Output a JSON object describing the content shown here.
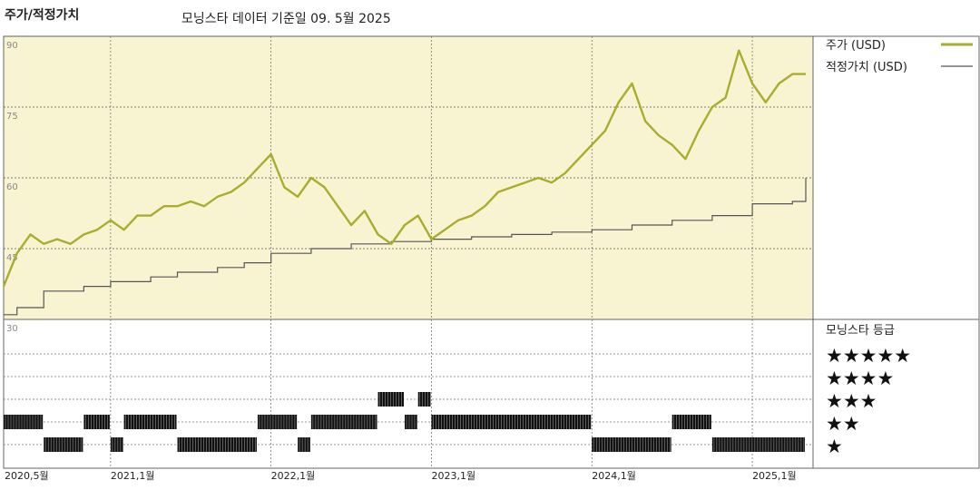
{
  "header": {
    "title": "주가/적정가치",
    "subtitle": "모닝스타 데이터 기준일 09. 5월 2025"
  },
  "legend": {
    "price_label": "주가 (USD)",
    "fair_label": "적정가치 (USD)",
    "rating_title": "모닝스타 등급"
  },
  "colors": {
    "price_line": "#a9ad2b",
    "fair_line": "#555555",
    "plot_bg": "#f8f4d2",
    "rating_bar": "#111111"
  },
  "chart_data": {
    "type": "line",
    "x_ticks": [
      "2020,5월",
      "2021,1월",
      "2022,1월",
      "2023,1월",
      "2024,1월",
      "2025,1월"
    ],
    "y_ticks": [
      90,
      75,
      60,
      45,
      30
    ],
    "ylim": [
      30,
      90
    ],
    "xlim": [
      "2020-05",
      "2025-05"
    ],
    "series": [
      {
        "name": "주가 (USD)",
        "x": [
          "2020-05",
          "2020-06",
          "2020-07",
          "2020-08",
          "2020-09",
          "2020-10",
          "2020-11",
          "2020-12",
          "2021-01",
          "2021-02",
          "2021-03",
          "2021-04",
          "2021-05",
          "2021-06",
          "2021-07",
          "2021-08",
          "2021-09",
          "2021-10",
          "2021-11",
          "2021-12",
          "2022-01",
          "2022-02",
          "2022-03",
          "2022-04",
          "2022-05",
          "2022-06",
          "2022-07",
          "2022-08",
          "2022-09",
          "2022-10",
          "2022-11",
          "2022-12",
          "2023-01",
          "2023-02",
          "2023-03",
          "2023-04",
          "2023-05",
          "2023-06",
          "2023-07",
          "2023-08",
          "2023-09",
          "2023-10",
          "2023-11",
          "2023-12",
          "2024-01",
          "2024-02",
          "2024-03",
          "2024-04",
          "2024-05",
          "2024-06",
          "2024-07",
          "2024-08",
          "2024-09",
          "2024-10",
          "2024-11",
          "2024-12",
          "2025-01",
          "2025-02",
          "2025-03",
          "2025-04",
          "2025-05"
        ],
        "values": [
          37,
          44,
          48,
          46,
          47,
          46,
          48,
          49,
          51,
          49,
          52,
          52,
          54,
          54,
          55,
          54,
          56,
          57,
          59,
          62,
          65,
          58,
          56,
          60,
          58,
          54,
          50,
          53,
          48,
          46,
          50,
          52,
          47,
          49,
          51,
          52,
          54,
          57,
          58,
          59,
          60,
          59,
          61,
          64,
          67,
          70,
          76,
          80,
          72,
          69,
          67,
          64,
          70,
          75,
          77,
          87,
          80,
          76,
          80,
          82,
          82
        ]
      },
      {
        "name": "적정가치 (USD)",
        "x": [
          "2020-05",
          "2020-06",
          "2020-08",
          "2020-11",
          "2021-01",
          "2021-04",
          "2021-06",
          "2021-09",
          "2021-11",
          "2022-01",
          "2022-04",
          "2022-07",
          "2022-10",
          "2023-01",
          "2023-04",
          "2023-07",
          "2023-10",
          "2024-01",
          "2024-04",
          "2024-07",
          "2024-10",
          "2025-01",
          "2025-04",
          "2025-05"
        ],
        "values": [
          31,
          32.5,
          36,
          37,
          38,
          39,
          40,
          41,
          42,
          44,
          45,
          46,
          46.5,
          47,
          47.5,
          48,
          48.5,
          49,
          50,
          51,
          52,
          54.5,
          55,
          60
        ]
      }
    ],
    "rating_levels": [
      "★★★★★",
      "★★★★",
      "★★★",
      "★★",
      "★"
    ],
    "ratings": [
      {
        "from": "2020-05",
        "to": "2020-08",
        "stars": 2
      },
      {
        "from": "2020-08",
        "to": "2020-11",
        "stars": 1
      },
      {
        "from": "2020-11",
        "to": "2021-01",
        "stars": 2
      },
      {
        "from": "2021-01",
        "to": "2021-02",
        "stars": 1
      },
      {
        "from": "2021-02",
        "to": "2021-06",
        "stars": 2
      },
      {
        "from": "2021-06",
        "to": "2021-12",
        "stars": 1
      },
      {
        "from": "2021-12",
        "to": "2022-03",
        "stars": 2
      },
      {
        "from": "2022-03",
        "to": "2022-04",
        "stars": 1
      },
      {
        "from": "2022-04",
        "to": "2022-09",
        "stars": 2
      },
      {
        "from": "2022-09",
        "to": "2022-11",
        "stars": 3
      },
      {
        "from": "2022-11",
        "to": "2022-12",
        "stars": 2
      },
      {
        "from": "2022-12",
        "to": "2023-01",
        "stars": 3
      },
      {
        "from": "2023-01",
        "to": "2024-01",
        "stars": 2
      },
      {
        "from": "2024-01",
        "to": "2024-07",
        "stars": 1
      },
      {
        "from": "2024-07",
        "to": "2024-10",
        "stars": 2
      },
      {
        "from": "2024-10",
        "to": "2025-05",
        "stars": 1
      }
    ]
  }
}
